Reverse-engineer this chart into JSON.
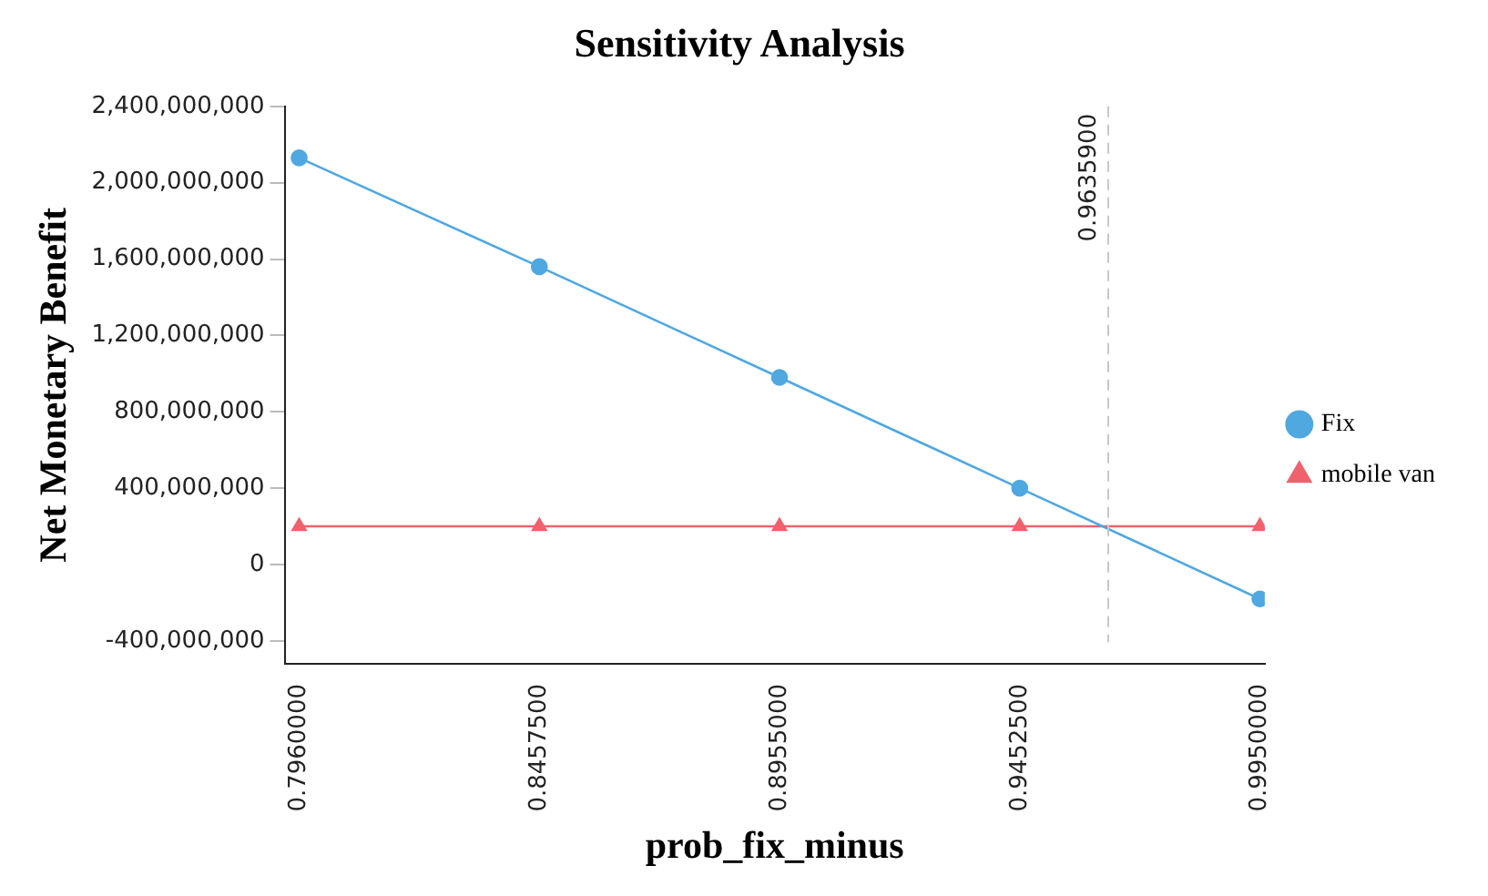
{
  "chart_data": {
    "type": "line",
    "title": "Sensitivity Analysis",
    "xlabel": "prob_fix_minus",
    "ylabel": "Net Monetary Benefit",
    "x": [
      0.796,
      0.84575,
      0.8955,
      0.94525,
      0.995
    ],
    "series": [
      {
        "name": "Fix",
        "color": "#4fa8e0",
        "marker": "circle",
        "values": [
          2130000000,
          1560000000,
          980000000,
          400000000,
          -180000000
        ]
      },
      {
        "name": "mobile van",
        "color": "#f0616e",
        "marker": "triangle",
        "values": [
          200000000,
          200000000,
          200000000,
          200000000,
          200000000
        ]
      }
    ],
    "xlim": [
      0.793,
      0.996
    ],
    "xticks": [
      {
        "value": 0.796,
        "label": "0.7960000"
      },
      {
        "value": 0.84575,
        "label": "0.8457500"
      },
      {
        "value": 0.8955,
        "label": "0.8955000"
      },
      {
        "value": 0.94525,
        "label": "0.9452500"
      },
      {
        "value": 0.995,
        "label": "0.9950000"
      }
    ],
    "ylim": [
      -520000000,
      2400000000
    ],
    "yticks": [
      {
        "value": -400000000,
        "label": "-400,000,000"
      },
      {
        "value": 0,
        "label": "0"
      },
      {
        "value": 400000000,
        "label": "400,000,000"
      },
      {
        "value": 800000000,
        "label": "800,000,000"
      },
      {
        "value": 1200000000,
        "label": "1,200,000,000"
      },
      {
        "value": 1600000000,
        "label": "1,600,000,000"
      },
      {
        "value": 2000000000,
        "label": "2,000,000,000"
      },
      {
        "value": 2400000000,
        "label": "2,400,000,000"
      }
    ],
    "ref_lines": [
      {
        "axis": "x",
        "value": 0.96359,
        "label": "0.9635900",
        "color": "#c8c8c8",
        "line_style": "dashed"
      }
    ],
    "grid": false,
    "legend": "right",
    "line_style": "solid"
  }
}
